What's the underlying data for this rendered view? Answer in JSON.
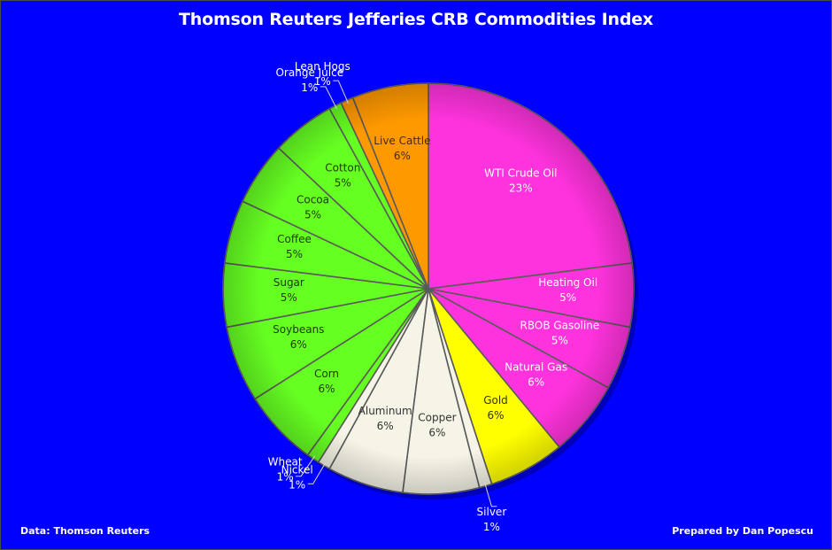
{
  "chart_data": {
    "type": "pie",
    "title": "Thomson Reuters Jefferies CRB Commodities Index",
    "slices": [
      {
        "label": "WTI Crude Oil",
        "value": 23,
        "display": "23%",
        "color": "#ff33dd"
      },
      {
        "label": "Heating Oil",
        "value": 5,
        "display": "5%",
        "color": "#ff33dd"
      },
      {
        "label": "RBOB Gasoline",
        "value": 5,
        "display": "5%",
        "color": "#ff33dd"
      },
      {
        "label": "Natural Gas",
        "value": 6,
        "display": "6%",
        "color": "#ff33dd"
      },
      {
        "label": "Gold",
        "value": 6,
        "display": "6%",
        "color": "#ffff00"
      },
      {
        "label": "Silver",
        "value": 1,
        "display": "1%",
        "color": "#f6f4e6"
      },
      {
        "label": "Copper",
        "value": 6,
        "display": "6%",
        "color": "#f6f4e6"
      },
      {
        "label": "Aluminum",
        "value": 6,
        "display": "6%",
        "color": "#f6f4e6"
      },
      {
        "label": "Nickel",
        "value": 1,
        "display": "1%",
        "color": "#f6f4e6"
      },
      {
        "label": "Wheat",
        "value": 1,
        "display": "1%",
        "color": "#66ff22"
      },
      {
        "label": "Corn",
        "value": 6,
        "display": "6%",
        "color": "#66ff22"
      },
      {
        "label": "Soybeans",
        "value": 6,
        "display": "6%",
        "color": "#66ff22"
      },
      {
        "label": "Sugar",
        "value": 5,
        "display": "5%",
        "color": "#66ff22"
      },
      {
        "label": "Coffee",
        "value": 5,
        "display": "5%",
        "color": "#66ff22"
      },
      {
        "label": "Cocoa",
        "value": 5,
        "display": "5%",
        "color": "#66ff22"
      },
      {
        "label": "Cotton",
        "value": 5,
        "display": "5%",
        "color": "#66ff22"
      },
      {
        "label": "Orange Juice",
        "value": 1,
        "display": "1%",
        "color": "#66ff22"
      },
      {
        "label": "Lean Hogs",
        "value": 1,
        "display": "1%",
        "color": "#ff9900"
      },
      {
        "label": "Live Cattle",
        "value": 6,
        "display": "6%",
        "color": "#ff9900"
      }
    ],
    "legend": "none"
  },
  "footer": {
    "source": "Data: Thomson Reuters",
    "credit": "Prepared by Dan Popescu"
  },
  "colors": {
    "background": "#0000ff",
    "energy": "#ff33dd",
    "precious_metal": "#ffff00",
    "industrial_metals": "#f6f4e6",
    "agriculture": "#66ff22",
    "livestock": "#ff9900"
  }
}
